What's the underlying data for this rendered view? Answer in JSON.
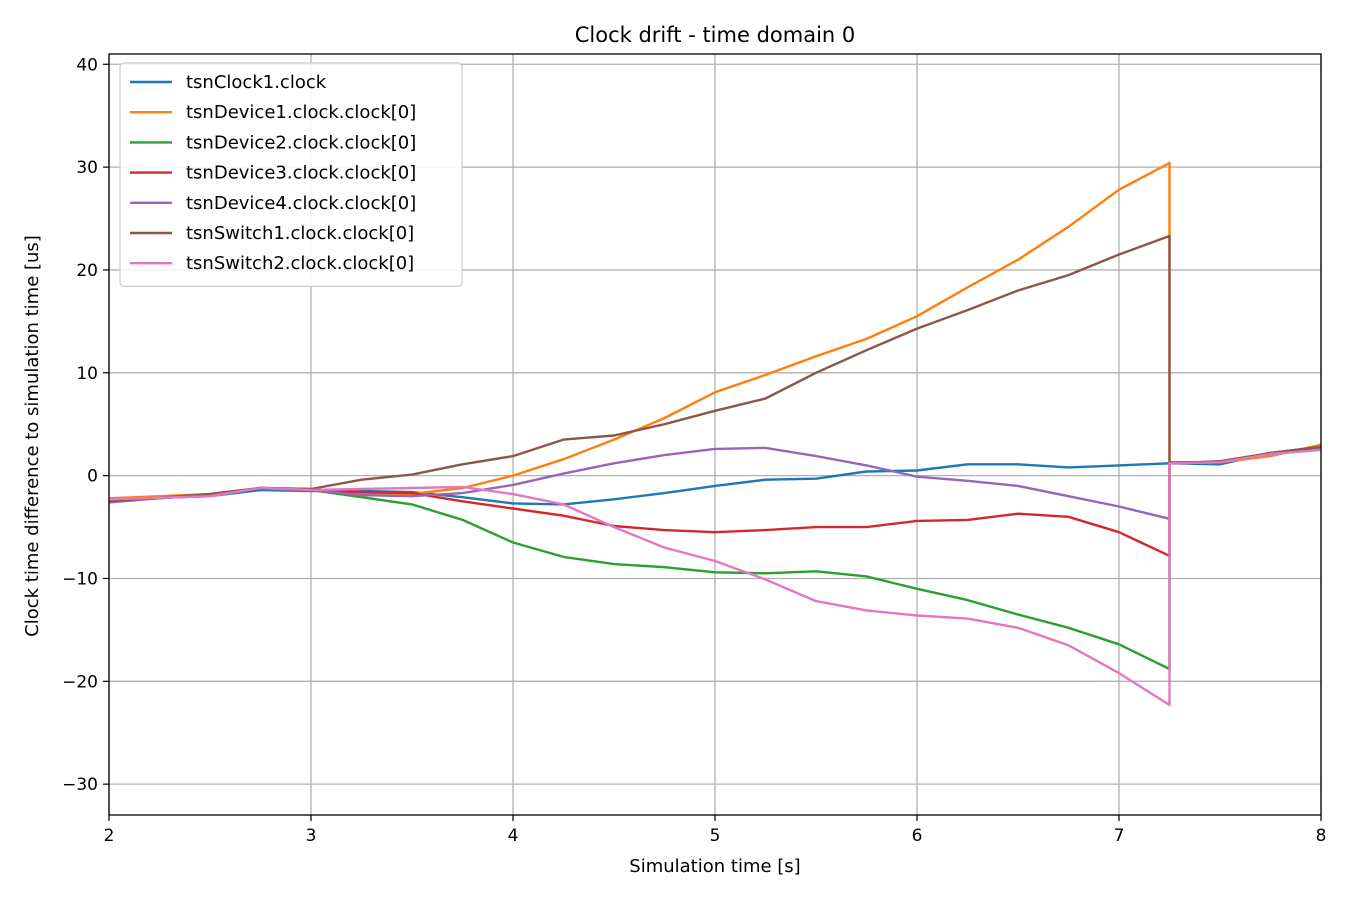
{
  "chart_data": {
    "type": "line",
    "title": "Clock drift - time domain 0",
    "xlabel": "Simulation time [s]",
    "ylabel": "Clock time difference to simulation time [us]",
    "xlim": [
      2,
      8
    ],
    "ylim": [
      -33,
      41
    ],
    "xticks": [
      2,
      3,
      4,
      5,
      6,
      7,
      8
    ],
    "xtick_labels": [
      "2",
      "3",
      "4",
      "5",
      "6",
      "7",
      "8"
    ],
    "yticks": [
      -30,
      -20,
      -10,
      0,
      10,
      20,
      30,
      40
    ],
    "ytick_labels": [
      "−30",
      "−20",
      "−10",
      "0",
      "10",
      "20",
      "30",
      "40"
    ],
    "grid": true,
    "legend_position": "top-left",
    "series": [
      {
        "name": "tsnClock1.clock",
        "color": "#1f77b4",
        "points": [
          [
            2.0,
            -2.3
          ],
          [
            2.5,
            -2.0
          ],
          [
            2.75,
            -1.4
          ],
          [
            3.0,
            -1.5
          ],
          [
            3.25,
            -1.5
          ],
          [
            3.5,
            -1.6
          ],
          [
            3.75,
            -2.1
          ],
          [
            4.0,
            -2.7
          ],
          [
            4.25,
            -2.8
          ],
          [
            4.5,
            -2.3
          ],
          [
            4.75,
            -1.7
          ],
          [
            5.0,
            -1.0
          ],
          [
            5.25,
            -0.4
          ],
          [
            5.5,
            -0.3
          ],
          [
            5.75,
            0.4
          ],
          [
            6.0,
            0.5
          ],
          [
            6.25,
            1.1
          ],
          [
            6.5,
            1.1
          ],
          [
            6.75,
            0.8
          ],
          [
            7.0,
            1.0
          ],
          [
            7.25,
            1.2
          ],
          [
            7.5,
            1.1
          ],
          [
            7.75,
            2.2
          ],
          [
            8.0,
            2.8
          ]
        ]
      },
      {
        "name": "tsnDevice1.clock.clock[0]",
        "color": "#ff7f0e",
        "points": [
          [
            2.0,
            -2.2
          ],
          [
            2.5,
            -1.8
          ],
          [
            2.75,
            -1.2
          ],
          [
            3.0,
            -1.3
          ],
          [
            3.25,
            -1.8
          ],
          [
            3.5,
            -1.8
          ],
          [
            3.75,
            -1.2
          ],
          [
            4.0,
            0.0
          ],
          [
            4.25,
            1.6
          ],
          [
            4.5,
            3.5
          ],
          [
            4.75,
            5.6
          ],
          [
            5.0,
            8.1
          ],
          [
            5.25,
            9.8
          ],
          [
            5.5,
            11.6
          ],
          [
            5.75,
            13.3
          ],
          [
            6.0,
            15.5
          ],
          [
            6.25,
            18.3
          ],
          [
            6.5,
            21.0
          ],
          [
            6.75,
            24.2
          ],
          [
            7.0,
            27.8
          ],
          [
            7.25,
            30.4
          ],
          [
            7.25,
            1.2
          ],
          [
            7.5,
            1.3
          ],
          [
            7.75,
            1.9
          ],
          [
            8.0,
            3.0
          ]
        ]
      },
      {
        "name": "tsnDevice2.clock.clock[0]",
        "color": "#2ca02c",
        "points": [
          [
            2.0,
            -2.5
          ],
          [
            2.5,
            -1.8
          ],
          [
            2.75,
            -1.2
          ],
          [
            3.0,
            -1.4
          ],
          [
            3.25,
            -2.1
          ],
          [
            3.5,
            -2.8
          ],
          [
            3.75,
            -4.3
          ],
          [
            4.0,
            -6.5
          ],
          [
            4.25,
            -7.9
          ],
          [
            4.5,
            -8.6
          ],
          [
            4.75,
            -8.9
          ],
          [
            5.0,
            -9.4
          ],
          [
            5.25,
            -9.5
          ],
          [
            5.5,
            -9.3
          ],
          [
            5.75,
            -9.8
          ],
          [
            6.0,
            -11.0
          ],
          [
            6.25,
            -12.1
          ],
          [
            6.5,
            -13.5
          ],
          [
            6.75,
            -14.8
          ],
          [
            7.0,
            -16.4
          ],
          [
            7.25,
            -18.8
          ],
          [
            7.25,
            1.3
          ],
          [
            7.5,
            1.3
          ],
          [
            7.75,
            2.2
          ],
          [
            8.0,
            2.7
          ]
        ]
      },
      {
        "name": "tsnDevice3.clock.clock[0]",
        "color": "#d62728",
        "points": [
          [
            2.0,
            -2.5
          ],
          [
            2.5,
            -1.9
          ],
          [
            2.75,
            -1.2
          ],
          [
            3.0,
            -1.4
          ],
          [
            3.25,
            -1.6
          ],
          [
            3.5,
            -1.7
          ],
          [
            3.75,
            -2.5
          ],
          [
            4.0,
            -3.2
          ],
          [
            4.25,
            -3.9
          ],
          [
            4.5,
            -4.9
          ],
          [
            4.75,
            -5.3
          ],
          [
            5.0,
            -5.5
          ],
          [
            5.25,
            -5.3
          ],
          [
            5.5,
            -5.0
          ],
          [
            5.75,
            -5.0
          ],
          [
            6.0,
            -4.4
          ],
          [
            6.25,
            -4.3
          ],
          [
            6.5,
            -3.7
          ],
          [
            6.75,
            -4.0
          ],
          [
            7.0,
            -5.5
          ],
          [
            7.25,
            -7.8
          ],
          [
            7.25,
            1.3
          ],
          [
            7.5,
            1.3
          ],
          [
            7.75,
            2.2
          ],
          [
            8.0,
            2.7
          ]
        ]
      },
      {
        "name": "tsnDevice4.clock.clock[0]",
        "color": "#9467bd",
        "points": [
          [
            2.0,
            -2.6
          ],
          [
            2.5,
            -1.8
          ],
          [
            2.75,
            -1.2
          ],
          [
            3.0,
            -1.4
          ],
          [
            3.25,
            -1.9
          ],
          [
            3.5,
            -2.0
          ],
          [
            3.75,
            -1.7
          ],
          [
            4.0,
            -0.9
          ],
          [
            4.25,
            0.2
          ],
          [
            4.5,
            1.2
          ],
          [
            4.75,
            2.0
          ],
          [
            5.0,
            2.6
          ],
          [
            5.25,
            2.7
          ],
          [
            5.5,
            1.9
          ],
          [
            5.75,
            1.0
          ],
          [
            6.0,
            -0.1
          ],
          [
            6.25,
            -0.5
          ],
          [
            6.5,
            -1.0
          ],
          [
            6.75,
            -2.0
          ],
          [
            7.0,
            -3.0
          ],
          [
            7.25,
            -4.2
          ],
          [
            7.25,
            1.3
          ],
          [
            7.5,
            1.3
          ],
          [
            7.75,
            2.2
          ],
          [
            8.0,
            2.6
          ]
        ]
      },
      {
        "name": "tsnSwitch1.clock.clock[0]",
        "color": "#8c564b",
        "points": [
          [
            2.0,
            -2.5
          ],
          [
            2.5,
            -1.8
          ],
          [
            2.75,
            -1.2
          ],
          [
            3.0,
            -1.3
          ],
          [
            3.25,
            -0.4
          ],
          [
            3.5,
            0.1
          ],
          [
            3.75,
            1.1
          ],
          [
            4.0,
            1.9
          ],
          [
            4.25,
            3.5
          ],
          [
            4.5,
            3.9
          ],
          [
            4.75,
            5.0
          ],
          [
            5.0,
            6.3
          ],
          [
            5.25,
            7.5
          ],
          [
            5.5,
            10.0
          ],
          [
            5.75,
            12.2
          ],
          [
            6.0,
            14.3
          ],
          [
            6.25,
            16.1
          ],
          [
            6.5,
            18.0
          ],
          [
            6.75,
            19.5
          ],
          [
            7.0,
            21.5
          ],
          [
            7.25,
            23.3
          ],
          [
            7.25,
            1.2
          ],
          [
            7.5,
            1.4
          ],
          [
            7.75,
            2.2
          ],
          [
            8.0,
            2.8
          ]
        ]
      },
      {
        "name": "tsnSwitch2.clock.clock[0]",
        "color": "#e377c2",
        "points": [
          [
            2.0,
            -2.3
          ],
          [
            2.5,
            -2.0
          ],
          [
            2.75,
            -1.2
          ],
          [
            3.0,
            -1.4
          ],
          [
            3.25,
            -1.3
          ],
          [
            3.5,
            -1.2
          ],
          [
            3.75,
            -1.1
          ],
          [
            4.0,
            -1.8
          ],
          [
            4.25,
            -2.8
          ],
          [
            4.5,
            -5.0
          ],
          [
            4.75,
            -7.0
          ],
          [
            5.0,
            -8.3
          ],
          [
            5.25,
            -10.1
          ],
          [
            5.5,
            -12.2
          ],
          [
            5.75,
            -13.1
          ],
          [
            6.0,
            -13.6
          ],
          [
            6.25,
            -13.9
          ],
          [
            6.5,
            -14.8
          ],
          [
            6.75,
            -16.5
          ],
          [
            7.0,
            -19.2
          ],
          [
            7.25,
            -22.3
          ],
          [
            7.25,
            1.2
          ],
          [
            7.5,
            1.3
          ],
          [
            7.75,
            2.1
          ],
          [
            8.0,
            2.5
          ]
        ]
      }
    ]
  }
}
